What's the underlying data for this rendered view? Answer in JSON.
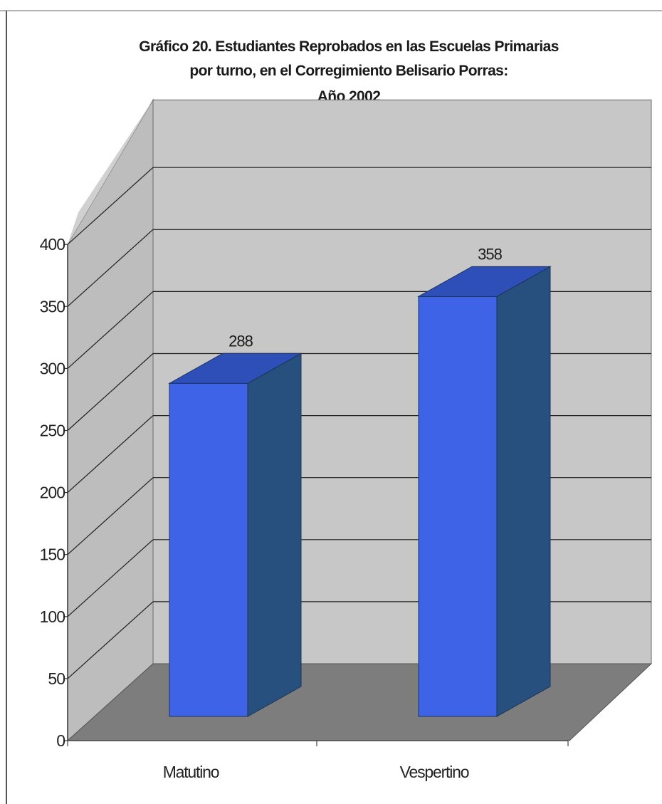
{
  "chart_data": {
    "type": "bar",
    "title_lines": [
      "Gráfico 20. Estudiantes Reprobados en las  Escuelas Primarias",
      "por turno, en el  Corregimiento Belisario Porras:",
      "Año 2002"
    ],
    "categories": [
      "Matutino",
      "Vespertino"
    ],
    "values": [
      288,
      358
    ],
    "data_labels": [
      "288",
      "358"
    ],
    "y_ticks": [
      "0",
      "50",
      "100",
      "150",
      "200",
      "250",
      "300",
      "350",
      "400"
    ],
    "ylim": [
      0,
      400
    ],
    "xlabel": "",
    "ylabel": "",
    "grid": true,
    "legend": "none",
    "colors": {
      "bar_front": "#3f63e6",
      "bar_top": "#2f4fb8",
      "bar_side": "#27507e",
      "back_wall": "#c7c7c7",
      "left_wall": "#bdbdbd",
      "floor": "#7d7d7d",
      "gridline": "#1e1e1e"
    }
  }
}
